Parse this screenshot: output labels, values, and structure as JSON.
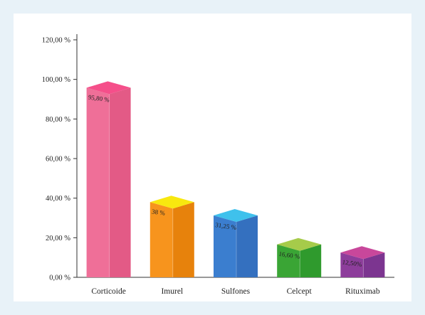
{
  "chart_data": {
    "type": "bar",
    "style": "3d-column",
    "categories": [
      "Corticoide",
      "Imurel",
      "Sulfones",
      "Celcept",
      "Rituximab"
    ],
    "values": [
      95.8,
      38,
      31.25,
      16.6,
      12.5
    ],
    "data_labels": [
      "95,80 %",
      "38 %",
      "31,25 %",
      "16,60 %",
      "12,50%"
    ],
    "yticks": [
      0,
      20,
      40,
      60,
      80,
      100,
      120
    ],
    "ytick_labels": [
      "0,00 %",
      "20,00 %",
      "40,00 %",
      "60,00 %",
      "80,00 %",
      "100,00 %",
      "120,00 %"
    ],
    "ylim": [
      0,
      120
    ],
    "grid": false,
    "legend": "none",
    "colors": {
      "front": [
        "#ef6f98",
        "#f7941d",
        "#3b7ecf",
        "#3aa535",
        "#8d3d9b"
      ],
      "top": [
        "#f54f8a",
        "#f8e80f",
        "#3fc1ec",
        "#a6cb4a",
        "#c8479b"
      ],
      "side": [
        "#e35a86",
        "#e7820c",
        "#3470bf",
        "#2f9a2d",
        "#7c3590"
      ]
    }
  }
}
